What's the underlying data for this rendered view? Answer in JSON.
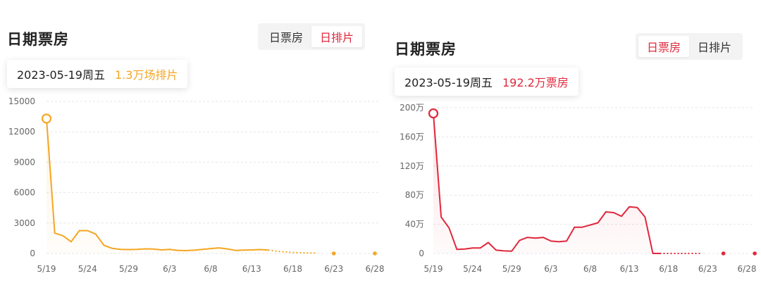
{
  "panels": [
    {
      "title": "日期票房",
      "toggle": {
        "option_box_office": "日票房",
        "option_screenings": "日排片",
        "active": "日排片"
      },
      "tooltip": {
        "date": "2023-05-19周五",
        "value": "1.3万场排片"
      },
      "accent": "#f5a623"
    },
    {
      "title": "日期票房",
      "toggle": {
        "option_box_office": "日票房",
        "option_screenings": "日排片",
        "active": "日票房"
      },
      "tooltip": {
        "date": "2023-05-19周五",
        "value": "192.2万票房"
      },
      "accent": "#e0283c"
    }
  ],
  "chart_data": [
    {
      "type": "line",
      "series_color": "#f5a623",
      "ylim": [
        0,
        15000
      ],
      "yticks": [
        0,
        3000,
        6000,
        9000,
        12000,
        15000
      ],
      "ytick_labels": [
        "0",
        "3000",
        "6000",
        "9000",
        "12000",
        "15000"
      ],
      "xlim": [
        0,
        40
      ],
      "xticks": [
        0,
        5,
        10,
        15,
        20,
        25,
        30,
        35,
        40
      ],
      "xtick_labels": [
        "5/19",
        "5/24",
        "5/29",
        "6/3",
        "6/8",
        "6/13",
        "6/18",
        "6/23",
        "6/28"
      ],
      "grid": "horizontal-dashed",
      "highlight_index": 0,
      "x": [
        0,
        1,
        2,
        3,
        4,
        5,
        6,
        7,
        8,
        9,
        10,
        11,
        12,
        13,
        14,
        15,
        16,
        17,
        18,
        19,
        20,
        21,
        22,
        23,
        24,
        25,
        26,
        27
      ],
      "values": [
        13300,
        2000,
        1750,
        1150,
        2250,
        2250,
        1900,
        800,
        500,
        400,
        380,
        400,
        450,
        430,
        350,
        400,
        300,
        280,
        320,
        400,
        480,
        550,
        450,
        300,
        330,
        350,
        380,
        330
      ],
      "projection_x": [
        27,
        28,
        29,
        30,
        31,
        32,
        33
      ],
      "projection_values": [
        330,
        220,
        150,
        100,
        70,
        50,
        40
      ],
      "marker_points": [
        {
          "x": 35,
          "y": 0
        },
        {
          "x": 40,
          "y": 0
        }
      ]
    },
    {
      "type": "line",
      "series_color": "#e0283c",
      "ylim": [
        0,
        2000000
      ],
      "yticks": [
        0,
        400000,
        800000,
        1200000,
        1600000,
        2000000
      ],
      "ytick_labels": [
        "0",
        "40万",
        "80万",
        "120万",
        "160万",
        "200万"
      ],
      "xlim": [
        0,
        40
      ],
      "xticks": [
        0,
        5,
        10,
        15,
        20,
        25,
        30,
        35,
        40
      ],
      "xtick_labels": [
        "5/19",
        "5/24",
        "5/29",
        "6/3",
        "6/8",
        "6/13",
        "6/18",
        "6/23",
        "6/28"
      ],
      "grid": "horizontal-dashed",
      "highlight_index": 0,
      "x": [
        0,
        1,
        2,
        3,
        4,
        5,
        6,
        7,
        8,
        9,
        10,
        11,
        12,
        13,
        14,
        15,
        16,
        17,
        18,
        19,
        20,
        21,
        22,
        23,
        24,
        25,
        26,
        27,
        28,
        29
      ],
      "values": [
        1922000,
        500000,
        350000,
        55000,
        60000,
        75000,
        75000,
        150000,
        45000,
        35000,
        32000,
        180000,
        220000,
        210000,
        220000,
        170000,
        160000,
        170000,
        360000,
        360000,
        390000,
        420000,
        570000,
        560000,
        510000,
        640000,
        630000,
        500000,
        0,
        0
      ],
      "projection_x": [
        28,
        29,
        30,
        31,
        32,
        33,
        34
      ],
      "projection_values": [
        0,
        0,
        0,
        0,
        0,
        0,
        0
      ],
      "marker_points": [
        {
          "x": 37,
          "y": 0
        },
        {
          "x": 41,
          "y": 0
        }
      ]
    }
  ]
}
